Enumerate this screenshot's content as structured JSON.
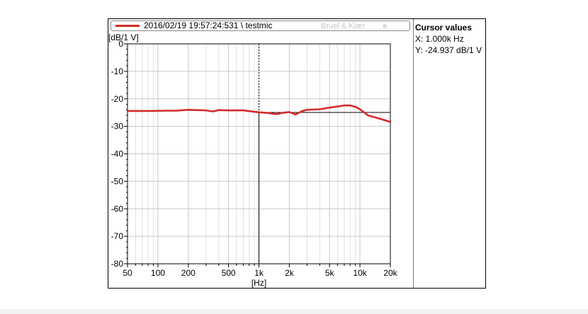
{
  "legend": {
    "label": "2016/02/19 19:57:24:531 \\ testmic",
    "color": "#d42a2a"
  },
  "watermark": "Brüel & Kjær",
  "cursor_panel": {
    "title": "Cursor values",
    "x_text": "X: 1.000k Hz",
    "y_text": "Y: -24.937 dB/1 V"
  },
  "chart_data": {
    "type": "line",
    "title": "",
    "xlabel": "[Hz]",
    "ylabel": "[dB/1 V]",
    "xscale": "log",
    "xlim": [
      50,
      20000
    ],
    "ylim": [
      -80,
      0
    ],
    "grid": true,
    "legend_position": "top",
    "x_ticks": [
      50,
      100,
      200,
      500,
      1000,
      2000,
      5000,
      10000,
      20000
    ],
    "x_tick_labels": [
      "50",
      "100",
      "200",
      "500",
      "1k",
      "2k",
      "5k",
      "10k",
      "20k"
    ],
    "y_ticks": [
      0,
      -10,
      -20,
      -30,
      -40,
      -50,
      -60,
      -70,
      -80
    ],
    "y_tick_labels": [
      "0",
      "-10",
      "-20",
      "-30",
      "-40",
      "-50",
      "-60",
      "-70",
      "-80"
    ],
    "cursor": {
      "x": 1000,
      "y": -24.937
    },
    "series": [
      {
        "name": "2016/02/19 19:57:24:531 \\ testmic",
        "color": "#d42a2a",
        "x": [
          50,
          80,
          120,
          150,
          200,
          300,
          350,
          400,
          500,
          700,
          1000,
          1200,
          1500,
          1700,
          2000,
          2300,
          2700,
          3000,
          4000,
          5000,
          6000,
          7000,
          8000,
          9000,
          10000,
          12000,
          15000,
          20000
        ],
        "y": [
          -24.4,
          -24.4,
          -24.3,
          -24.3,
          -24.0,
          -24.2,
          -24.6,
          -24.1,
          -24.2,
          -24.2,
          -24.9,
          -25.1,
          -25.6,
          -25.1,
          -24.8,
          -25.7,
          -24.4,
          -24.0,
          -23.8,
          -23.2,
          -22.8,
          -22.4,
          -22.4,
          -22.9,
          -23.8,
          -26.0,
          -27.0,
          -28.4
        ]
      }
    ]
  }
}
